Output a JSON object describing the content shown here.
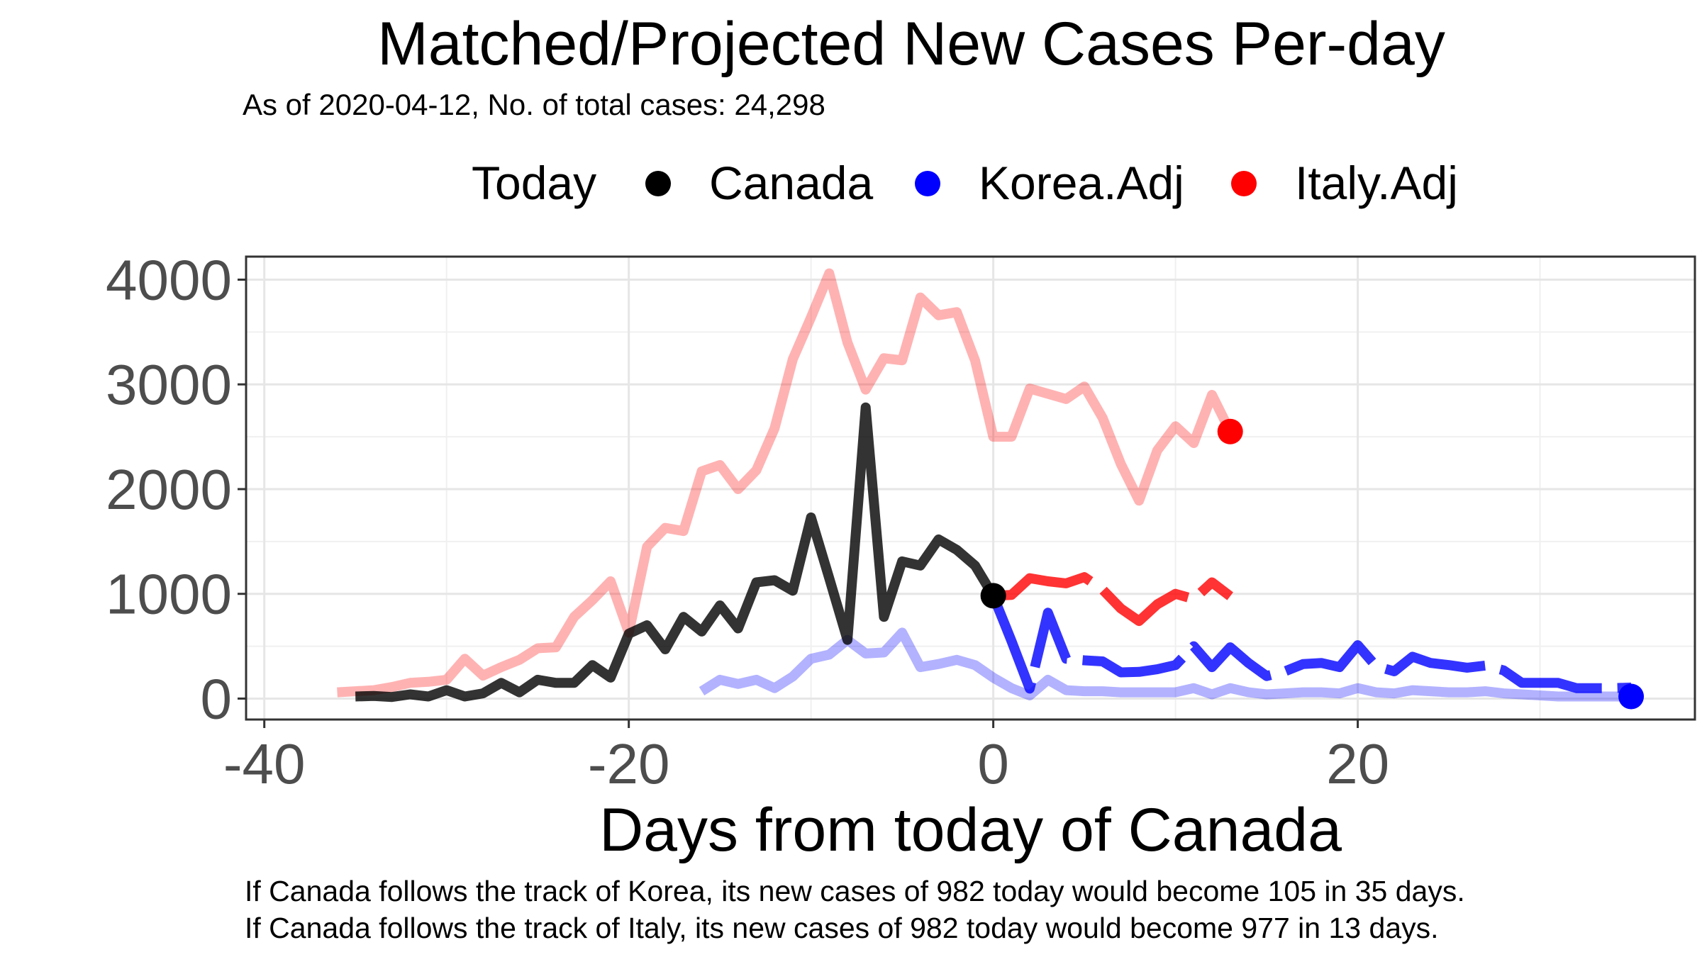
{
  "chart_data": {
    "type": "line",
    "title": "Matched/Projected New Cases Per-day",
    "subtitle": "As of 2020-04-12, No. of total cases: 24,298",
    "xlabel": "Days from today of Canada",
    "ylabel": "",
    "xlim": [
      -41,
      38.5
    ],
    "ylim": [
      -200,
      4220
    ],
    "x_ticks": [
      -40,
      -20,
      0,
      20
    ],
    "y_ticks": [
      0,
      1000,
      2000,
      3000,
      4000
    ],
    "grid": true,
    "legend_position": "top",
    "legend": {
      "title": "Today",
      "items": [
        {
          "label": "Canada",
          "color": "#000000"
        },
        {
          "label": "Korea.Adj",
          "color": "#0000ff"
        },
        {
          "label": "Italy.Adj",
          "color": "#ff0000"
        }
      ]
    },
    "series": [
      {
        "name": "Canada",
        "color": "#000000",
        "role": "observed",
        "x": [
          -35,
          -34,
          -33,
          -32,
          -31,
          -30,
          -29,
          -28,
          -27,
          -26,
          -25,
          -24,
          -23,
          -22,
          -21,
          -20,
          -19,
          -18,
          -17,
          -16,
          -15,
          -14,
          -13,
          -12,
          -11,
          -10,
          -9,
          -8,
          -7,
          -6,
          -5,
          -4,
          -3,
          -2,
          -1,
          0
        ],
        "y": [
          20,
          25,
          15,
          40,
          20,
          80,
          20,
          50,
          150,
          60,
          180,
          150,
          150,
          320,
          200,
          620,
          700,
          470,
          780,
          640,
          890,
          670,
          1110,
          1130,
          1030,
          1730,
          1150,
          560,
          2780,
          780,
          1310,
          1270,
          1520,
          1420,
          1270,
          982
        ]
      },
      {
        "name": "Korea.Adj",
        "color": "#0000ff",
        "role": "matched history",
        "x": [
          -16,
          -15,
          -14,
          -13,
          -12,
          -11,
          -10,
          -9,
          -8,
          -7,
          -6,
          -5,
          -4,
          -3,
          -2,
          -1,
          0,
          1,
          2,
          3,
          4,
          5,
          6,
          7,
          8,
          9,
          10,
          11,
          12,
          13,
          14,
          15,
          16,
          17,
          18,
          19,
          20,
          21,
          22,
          23,
          24,
          25,
          26,
          27,
          28,
          29,
          30,
          31,
          32,
          33,
          34,
          35
        ],
        "y": [
          70,
          180,
          140,
          180,
          100,
          210,
          380,
          420,
          560,
          430,
          440,
          630,
          300,
          330,
          370,
          320,
          200,
          100,
          30,
          180,
          80,
          70,
          70,
          60,
          60,
          60,
          60,
          100,
          40,
          100,
          60,
          40,
          50,
          60,
          60,
          50,
          100,
          60,
          50,
          80,
          70,
          60,
          60,
          70,
          50,
          40,
          30,
          20,
          20,
          20,
          20,
          20
        ]
      },
      {
        "name": "Korea.Adj",
        "color": "#0000ff",
        "role": "projection",
        "x": [
          0,
          1,
          2,
          3,
          4,
          5,
          6,
          7,
          8,
          9,
          10,
          11,
          12,
          13,
          14,
          15,
          16,
          17,
          18,
          19,
          20,
          21,
          22,
          23,
          24,
          25,
          26,
          27,
          28,
          29,
          30,
          31,
          32,
          33,
          34,
          35
        ],
        "y": [
          982,
          550,
          95,
          820,
          380,
          365,
          355,
          250,
          255,
          280,
          320,
          500,
          300,
          490,
          340,
          215,
          260,
          330,
          340,
          300,
          510,
          310,
          260,
          400,
          340,
          320,
          295,
          315,
          270,
          150,
          150,
          150,
          100,
          100,
          100,
          105
        ]
      },
      {
        "name": "Italy.Adj",
        "color": "#ff0000",
        "role": "matched history",
        "x": [
          -36,
          -35,
          -34,
          -33,
          -32,
          -31,
          -30,
          -29,
          -28,
          -27,
          -26,
          -25,
          -24,
          -23,
          -22,
          -21,
          -20,
          -19,
          -18,
          -17,
          -16,
          -15,
          -14,
          -13,
          -12,
          -11,
          -10,
          -9,
          -8,
          -7,
          -6,
          -5,
          -4,
          -3,
          -2,
          -1,
          0,
          1,
          2,
          3,
          4,
          5,
          6,
          7,
          8,
          9,
          10,
          11,
          12,
          13
        ],
        "y": [
          60,
          70,
          80,
          110,
          150,
          160,
          180,
          380,
          220,
          300,
          370,
          480,
          490,
          780,
          940,
          1120,
          630,
          1450,
          1630,
          1600,
          2170,
          2230,
          2000,
          2180,
          2580,
          3240,
          3640,
          4060,
          3400,
          2950,
          3250,
          3230,
          3830,
          3660,
          3690,
          3230,
          2500,
          2500,
          2960,
          2910,
          2860,
          2980,
          2680,
          2240,
          1890,
          2370,
          2600,
          2440,
          2900,
          2550
        ]
      },
      {
        "name": "Italy.Adj",
        "color": "#ff0000",
        "role": "projection",
        "x": [
          0,
          1,
          2,
          3,
          4,
          5,
          6,
          7,
          8,
          9,
          10,
          11,
          12,
          13
        ],
        "y": [
          982,
          990,
          1150,
          1120,
          1100,
          1160,
          1040,
          860,
          740,
          900,
          1000,
          950,
          1110,
          977
        ]
      }
    ],
    "endpoints": [
      {
        "name": "Canada",
        "x": 0,
        "y": 982,
        "color": "#000000"
      },
      {
        "name": "Korea.Adj",
        "x": 35,
        "y": 20,
        "color": "#0000ff"
      },
      {
        "name": "Italy.Adj",
        "x": 13,
        "y": 2550,
        "color": "#ff0000"
      }
    ]
  },
  "caption": {
    "line1": "If Canada follows the track of Korea, its new cases of 982 today would become 105 in 35 days.",
    "line2": "If Canada follows the track of Italy, its new cases of 982 today would become 977 in 13 days."
  }
}
